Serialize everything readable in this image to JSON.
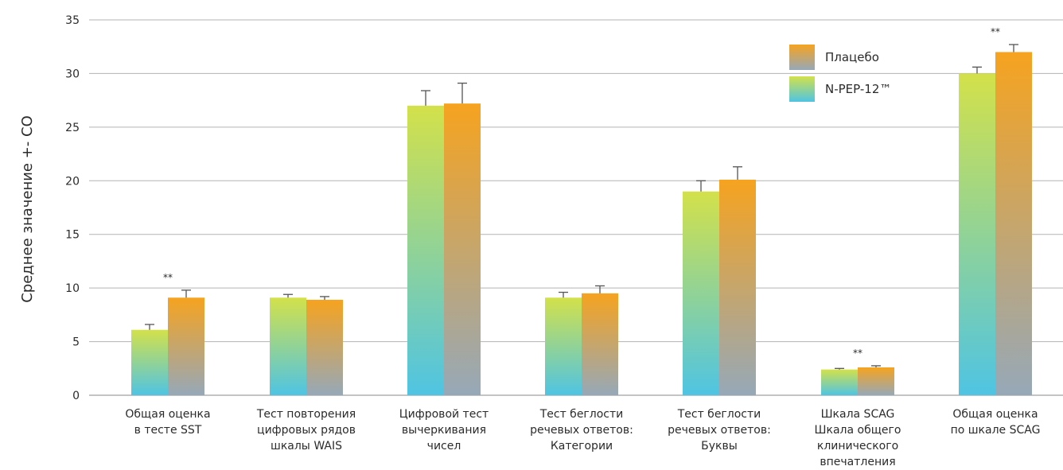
{
  "chart_data": {
    "type": "bar",
    "ylabel": "Среднее значение +- СО",
    "ylim": [
      0,
      35
    ],
    "yticks": [
      0,
      5,
      10,
      15,
      20,
      25,
      30,
      35
    ],
    "grid": true,
    "legend_position": "top-right",
    "categories": [
      [
        "Общая оценка",
        "в тесте SST"
      ],
      [
        "Тест повторения",
        "цифровых рядов",
        "шкалы WAIS"
      ],
      [
        "Цифровой тест",
        "вычеркивания",
        "чисел"
      ],
      [
        "Тест беглости",
        "речевых ответов:",
        "Категории"
      ],
      [
        "Тест беглости",
        "речевых ответов:",
        "Буквы"
      ],
      [
        "Шкала SCAG",
        "Шкала общего",
        "клинического",
        "впечатления"
      ],
      [
        "Общая оценка",
        "по шкале SCAG"
      ]
    ],
    "series": [
      {
        "name": "N-PEP-12™",
        "values": [
          6.1,
          9.1,
          27.0,
          9.1,
          19.0,
          2.4,
          30.0
        ],
        "errors": [
          0.5,
          0.3,
          1.4,
          0.5,
          1.0,
          0.1,
          0.6
        ],
        "colors": [
          "#4fc4e3",
          "#d3e14a"
        ]
      },
      {
        "name": "Плацебо",
        "values": [
          9.1,
          8.9,
          27.2,
          9.5,
          20.1,
          2.6,
          32.0
        ],
        "errors": [
          0.7,
          0.3,
          1.9,
          0.7,
          1.2,
          0.15,
          0.7
        ],
        "colors": [
          "#96a8b8",
          "#f6a31f"
        ]
      }
    ],
    "annotations": [
      {
        "category_index": 0,
        "text": "**"
      },
      {
        "category_index": 5,
        "text": "**"
      },
      {
        "category_index": 6,
        "text": "**"
      }
    ]
  }
}
